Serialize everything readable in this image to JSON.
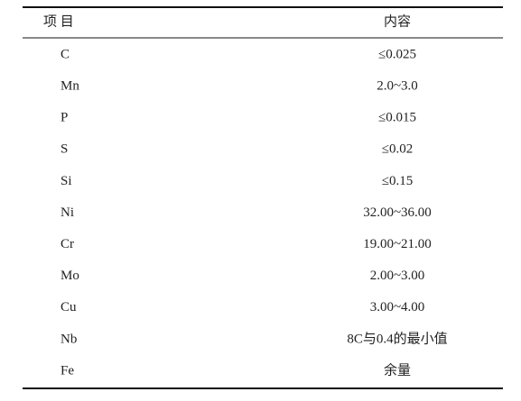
{
  "table": {
    "header": [
      "项 目",
      "内容"
    ],
    "rows": [
      [
        "C",
        "≤0.025"
      ],
      [
        "Mn",
        "2.0~3.0"
      ],
      [
        "P",
        "≤0.015"
      ],
      [
        "S",
        "≤0.02"
      ],
      [
        "Si",
        "≤0.15"
      ],
      [
        "Ni",
        "32.00~36.00"
      ],
      [
        "Cr",
        "19.00~21.00"
      ],
      [
        "Mo",
        "2.00~3.00"
      ],
      [
        "Cu",
        "3.00~4.00"
      ],
      [
        "Nb",
        "8C与0.4的最小值"
      ],
      [
        "Fe",
        "余量"
      ]
    ]
  }
}
